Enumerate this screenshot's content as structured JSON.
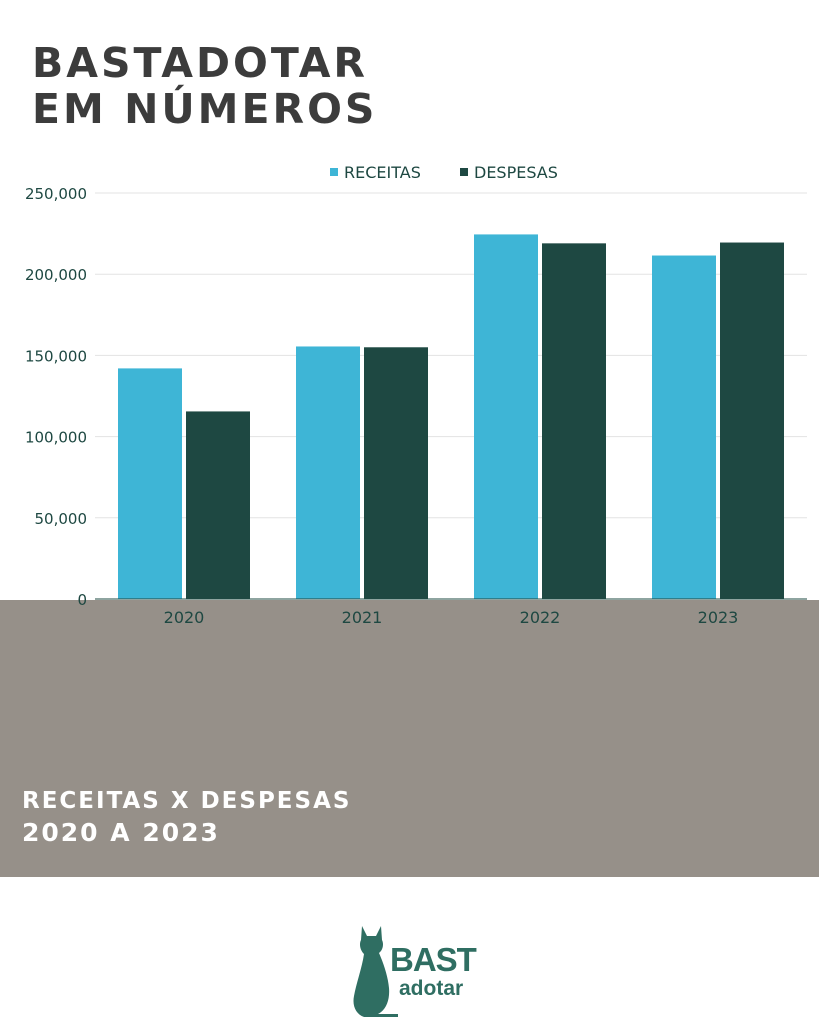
{
  "header": {
    "title_line1": "BASTADOTAR",
    "title_line2": "EM NÚMEROS"
  },
  "subtitle": {
    "line1": "RECEITAS X DESPESAS",
    "line2": "2020 A 2023"
  },
  "logo": {
    "line1": "BAST",
    "line2": "adotar"
  },
  "colors": {
    "receitas": "#3eb5d6",
    "despesas": "#1e4842",
    "band": "#969089",
    "title": "#3c3c3c"
  },
  "chart_data": {
    "type": "bar",
    "title": "",
    "xlabel": "",
    "ylabel": "",
    "categories": [
      "2020",
      "2021",
      "2022",
      "2023"
    ],
    "series": [
      {
        "name": "RECEITAS",
        "values": [
          142000,
          155500,
          224500,
          211500
        ]
      },
      {
        "name": "DESPESAS",
        "values": [
          115500,
          155000,
          219000,
          219500
        ]
      }
    ],
    "ylim": [
      0,
      250000
    ],
    "yticks": [
      "0",
      "50,000",
      "100,000",
      "150,000",
      "200,000",
      "250,000"
    ],
    "grid": true,
    "legend": "top-center"
  }
}
